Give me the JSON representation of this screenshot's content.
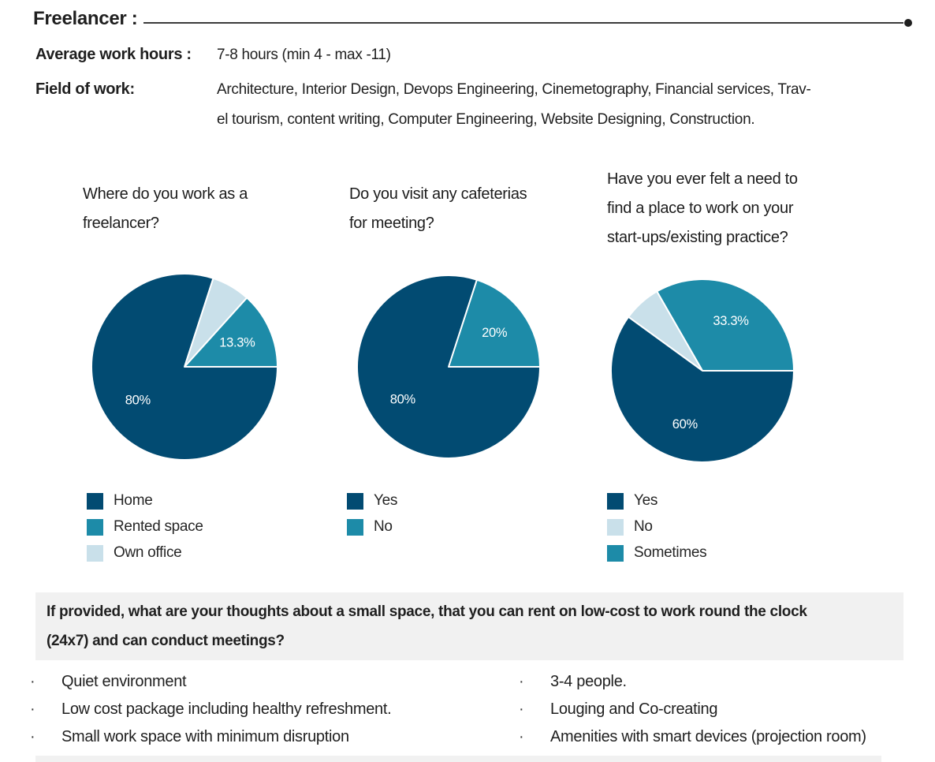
{
  "header": {
    "title": "Freelancer :",
    "rows": [
      {
        "label": "Average work hours :",
        "value": "7-8 hours (min 4 - max -11)"
      },
      {
        "label": "Field of work:",
        "value_line1": "Architecture, Interior Design, Devops Engineering, Cinemetography, Financial services, Trav-",
        "value_line2": "el tourism, content writing, Computer Engineering, Website Designing, Construction."
      }
    ]
  },
  "colors": {
    "dark_blue": "#024b72",
    "teal": "#1d8ba8",
    "light_blue": "#c9e0ea",
    "text": "#1f1f1f",
    "rule": "#3b3b3b",
    "box_bg": "#f1f1f1"
  },
  "chart_data": [
    {
      "type": "pie",
      "title_line1": "Where do you work as a",
      "title_line2": "freelancer?",
      "title_line3": "",
      "categories": [
        "Home",
        "Rented space",
        "Own office"
      ],
      "values": [
        80,
        13.3,
        6.7
      ],
      "slices": [
        {
          "name": "Rented space",
          "pct": 13.3,
          "color": "#1d8ba8",
          "label": "13.3%"
        },
        {
          "name": "Own office",
          "pct": 6.7,
          "color": "#c9e0ea",
          "label": ""
        },
        {
          "name": "Home",
          "pct": 80,
          "color": "#024b72",
          "label": "80%"
        }
      ],
      "legend": [
        {
          "label": "Home",
          "color": "#024b72"
        },
        {
          "label": "Rented space",
          "color": "#1d8ba8"
        },
        {
          "label": "Own office",
          "color": "#c9e0ea"
        }
      ]
    },
    {
      "type": "pie",
      "title_line1": "Do you visit any cafeterias",
      "title_line2": "for meeting?",
      "title_line3": "",
      "categories": [
        "Yes",
        "No"
      ],
      "values": [
        80,
        20
      ],
      "slices": [
        {
          "name": "No",
          "pct": 20,
          "color": "#1d8ba8",
          "label": "20%"
        },
        {
          "name": "Yes",
          "pct": 80,
          "color": "#024b72",
          "label": "80%"
        }
      ],
      "legend": [
        {
          "label": "Yes",
          "color": "#024b72"
        },
        {
          "label": "No",
          "color": "#1d8ba8"
        }
      ]
    },
    {
      "type": "pie",
      "title_line1": "Have you ever felt a need to",
      "title_line2": "find a place to work on your",
      "title_line3": "start-ups/existing practice?",
      "categories": [
        "Yes",
        "No",
        "Sometimes"
      ],
      "values": [
        60,
        6.7,
        33.3
      ],
      "slices": [
        {
          "name": "Sometimes",
          "pct": 33.3,
          "color": "#1d8ba8",
          "label": "33.3%"
        },
        {
          "name": "No",
          "pct": 6.7,
          "color": "#c9e0ea",
          "label": ""
        },
        {
          "name": "Yes",
          "pct": 60,
          "color": "#024b72",
          "label": "60%"
        }
      ],
      "legend": [
        {
          "label": "Yes",
          "color": "#024b72"
        },
        {
          "label": "No",
          "color": "#c9e0ea"
        },
        {
          "label": "Sometimes",
          "color": "#1d8ba8"
        }
      ]
    }
  ],
  "question_box": {
    "line1": "If provided, what are your thoughts about a small space, that you can rent on low-cost to work round the clock",
    "line2": "(24x7) and can conduct meetings?"
  },
  "takeaways": {
    "bullet_char": "·",
    "left": [
      "Quiet environment",
      "Low cost package including healthy refreshment.",
      "Small work space with minimum disruption"
    ],
    "right": [
      "3-4 people.",
      "Louging and Co-creating",
      "Amenities with smart devices (projection room)"
    ]
  }
}
